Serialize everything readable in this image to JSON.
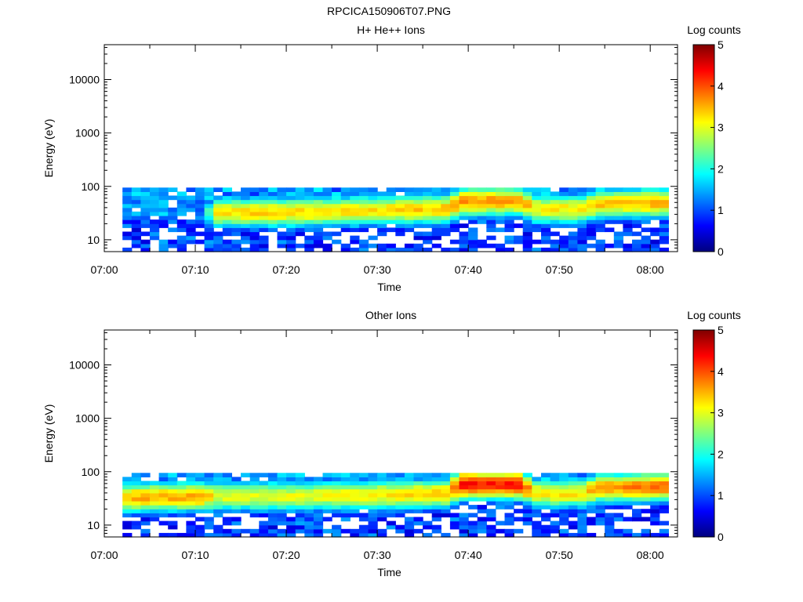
{
  "figure_title": "RPCICA150906T07.PNG",
  "colormap": [
    "#00007f",
    "#0000ff",
    "#007fff",
    "#00ffff",
    "#7fff7f",
    "#ffff00",
    "#ff7f00",
    "#ff0000",
    "#7f0000"
  ],
  "chart_data": [
    {
      "type": "heatmap",
      "title": "H+ He++ Ions",
      "xlabel": "Time",
      "ylabel": "Energy (eV)",
      "yscale": "log",
      "xlim": [
        "07:00",
        "08:03"
      ],
      "ylim": [
        6,
        45000
      ],
      "x_ticks": [
        "07:00",
        "07:10",
        "07:20",
        "07:30",
        "07:40",
        "07:50",
        "08:00"
      ],
      "y_ticks": [
        10,
        100,
        1000,
        10000
      ],
      "y_tick_labels": [
        "10",
        "100",
        "1000",
        "10000"
      ],
      "grid": false,
      "colorbar": {
        "label": "Log counts",
        "range": [
          0,
          5
        ],
        "ticks": [
          "0",
          "1",
          "2",
          "3",
          "4",
          "5"
        ]
      },
      "data_time_range": [
        "07:02",
        "08:02"
      ],
      "data_energy_range_eV": [
        6,
        95
      ],
      "peak_energy_eV": [
        {
          "time": "07:02",
          "energy": 30,
          "log_counts": 1.0
        },
        {
          "time": "07:11",
          "energy": 30,
          "log_counts": 1.0
        },
        {
          "time": "07:12",
          "energy": 33,
          "log_counts": 3.3
        },
        {
          "time": "07:20",
          "energy": 33,
          "log_counts": 3.3
        },
        {
          "time": "07:30",
          "energy": 36,
          "log_counts": 3.3
        },
        {
          "time": "07:38",
          "energy": 38,
          "log_counts": 3.4
        },
        {
          "time": "07:39",
          "energy": 53,
          "log_counts": 3.6
        },
        {
          "time": "07:46",
          "energy": 53,
          "log_counts": 3.6
        },
        {
          "time": "07:47",
          "energy": 38,
          "log_counts": 3.2
        },
        {
          "time": "07:53",
          "energy": 38,
          "log_counts": 3.2
        },
        {
          "time": "07:54",
          "energy": 48,
          "log_counts": 3.4
        },
        {
          "time": "08:02",
          "energy": 50,
          "log_counts": 3.5
        }
      ]
    },
    {
      "type": "heatmap",
      "title": "Other Ions",
      "xlabel": "Time",
      "ylabel": "Energy (eV)",
      "yscale": "log",
      "xlim": [
        "07:00",
        "08:03"
      ],
      "ylim": [
        6,
        45000
      ],
      "x_ticks": [
        "07:00",
        "07:10",
        "07:20",
        "07:30",
        "07:40",
        "07:50",
        "08:00"
      ],
      "y_ticks": [
        10,
        100,
        1000,
        10000
      ],
      "y_tick_labels": [
        "10",
        "100",
        "1000",
        "10000"
      ],
      "grid": false,
      "colorbar": {
        "label": "Log counts",
        "range": [
          0,
          5
        ],
        "ticks": [
          "0",
          "1",
          "2",
          "3",
          "4",
          "5"
        ]
      },
      "data_time_range": [
        "07:02",
        "08:02"
      ],
      "data_energy_range_eV": [
        6,
        95
      ],
      "peak_energy_eV": [
        {
          "time": "07:02",
          "energy": 33,
          "log_counts": 3.5
        },
        {
          "time": "07:11",
          "energy": 35,
          "log_counts": 3.6
        },
        {
          "time": "07:12",
          "energy": 35,
          "log_counts": 3.0
        },
        {
          "time": "07:20",
          "energy": 35,
          "log_counts": 3.0
        },
        {
          "time": "07:30",
          "energy": 37,
          "log_counts": 3.2
        },
        {
          "time": "07:38",
          "energy": 40,
          "log_counts": 3.4
        },
        {
          "time": "07:39",
          "energy": 58,
          "log_counts": 4.3
        },
        {
          "time": "07:46",
          "energy": 58,
          "log_counts": 4.3
        },
        {
          "time": "07:47",
          "energy": 40,
          "log_counts": 3.2
        },
        {
          "time": "07:53",
          "energy": 40,
          "log_counts": 3.2
        },
        {
          "time": "07:54",
          "energy": 50,
          "log_counts": 3.6
        },
        {
          "time": "08:02",
          "energy": 53,
          "log_counts": 3.8
        }
      ]
    }
  ]
}
